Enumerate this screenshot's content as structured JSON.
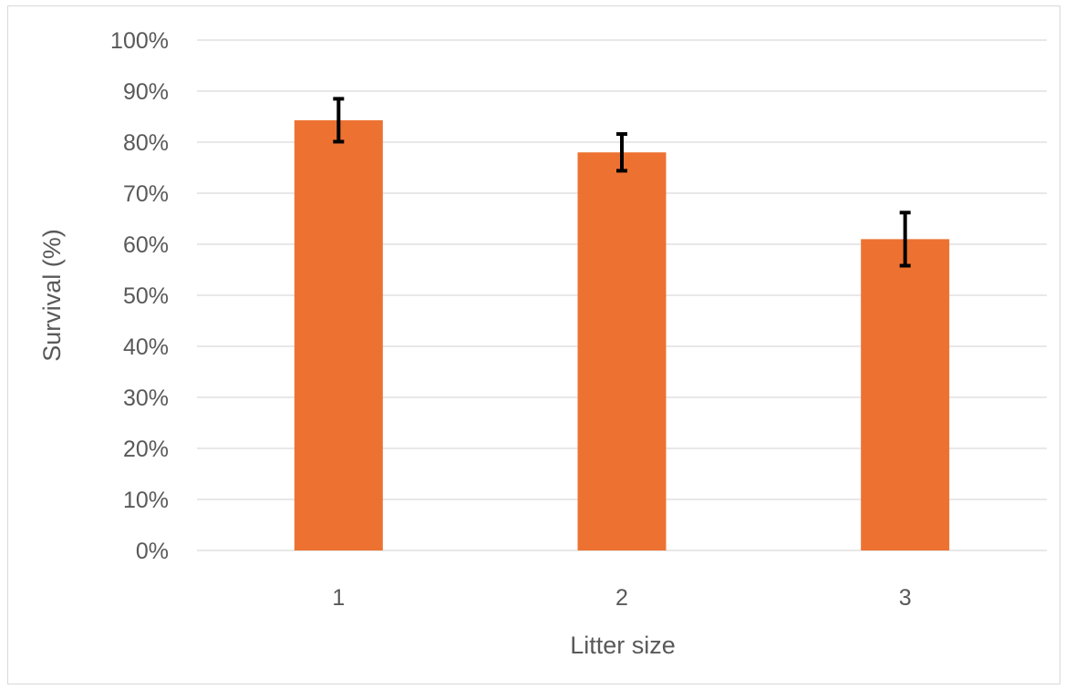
{
  "chart_data": {
    "type": "bar",
    "categories": [
      "1",
      "2",
      "3"
    ],
    "values": [
      84.3,
      78.0,
      61.0
    ],
    "error": [
      4.2,
      3.6,
      5.2
    ],
    "title": "",
    "xlabel": "Litter size",
    "ylabel": "Survival (%)",
    "ylim": [
      0,
      100
    ],
    "ytick_step": 10,
    "ytick_suffix": "%",
    "grid": true,
    "legend": "none",
    "bar_color": "#ED7232",
    "error_color": "#000000",
    "grid_color": "#d9d9d9"
  }
}
